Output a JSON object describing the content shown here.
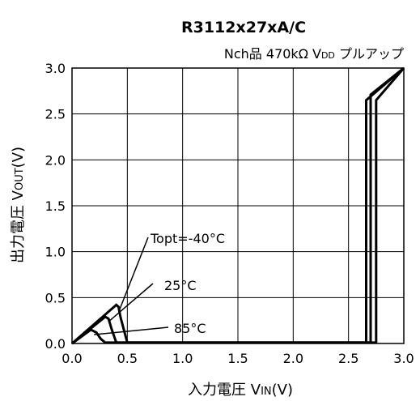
{
  "chart_data": {
    "type": "line",
    "title": "R3112x27xA/C",
    "subtitle": "Nch品 470kΩ VDD プルアップ",
    "subtitle_parts": {
      "text1": "Nch品 470kΩ V",
      "sub": "DD",
      "text2": " プルアップ"
    },
    "xlabel": "入力電圧 VIN(V)",
    "xlabel_parts": {
      "pre": "入力電圧 V",
      "sub": "IN",
      "post": "(V)"
    },
    "ylabel": "出力電圧 VOUT(V)",
    "ylabel_parts": {
      "pre": "出力電圧 V",
      "sub": "OUT",
      "post": "(V)"
    },
    "xlim": [
      0,
      3.0
    ],
    "ylim": [
      0,
      3.0
    ],
    "xticks": [
      "0.0",
      "0.5",
      "1.0",
      "1.5",
      "2.0",
      "2.5",
      "3.0"
    ],
    "yticks": [
      "0.0",
      "0.5",
      "1.0",
      "1.5",
      "2.0",
      "2.5",
      "3.0"
    ],
    "grid": true,
    "series": [
      {
        "name": "Topt=-40°C",
        "x": [
          0,
          0.4,
          0.42,
          0.44,
          0.5,
          2.75,
          2.75,
          3.0
        ],
        "y": [
          0,
          0.42,
          0.4,
          0.28,
          0.01,
          0.01,
          2.65,
          3.0
        ]
      },
      {
        "name": "25°C",
        "x": [
          0,
          0.3,
          0.33,
          0.36,
          0.4,
          2.7,
          2.7,
          3.0
        ],
        "y": [
          0,
          0.29,
          0.27,
          0.15,
          0.01,
          0.01,
          2.71,
          3.0
        ]
      },
      {
        "name": "85°C",
        "x": [
          0,
          0.17,
          0.22,
          0.26,
          0.3,
          2.66,
          2.66,
          3.0
        ],
        "y": [
          0,
          0.15,
          0.12,
          0.05,
          0.01,
          0.01,
          2.65,
          3.0
        ]
      }
    ],
    "annotations": [
      {
        "text": "Topt=-40°C",
        "series": 0
      },
      {
        "text": "25°C",
        "series": 1
      },
      {
        "text": "85°C",
        "series": 2
      }
    ]
  }
}
